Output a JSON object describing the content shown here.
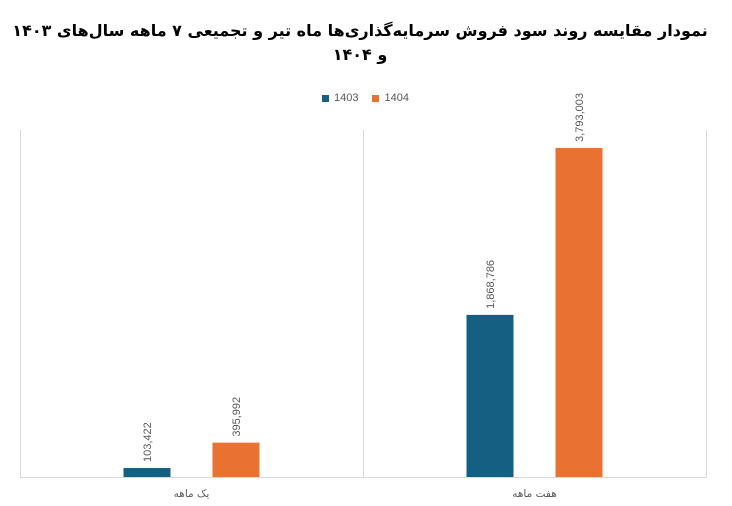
{
  "chart_data": {
    "type": "bar",
    "title": "نمودار مقایسه روند سود فروش سرمایه‌گذاری‌ها ماه تیر و تجمیعی ۷ ماهه سال‌های ۱۴۰۳ و ۱۴۰۴",
    "categories": [
      "یک ماهه",
      "هفت ماهه"
    ],
    "series": [
      {
        "name": "1403",
        "color": "#156082",
        "values": [
          103422,
          1868786
        ]
      },
      {
        "name": "1404",
        "color": "#E97132",
        "values": [
          395992,
          3793003
        ]
      }
    ],
    "xlabel": "",
    "ylabel": "",
    "ylim": [
      0,
      4000000
    ],
    "grid": {
      "horizontal": false,
      "vertical": true
    },
    "legend_position": "top",
    "data_labels": "vertical, above bars"
  }
}
